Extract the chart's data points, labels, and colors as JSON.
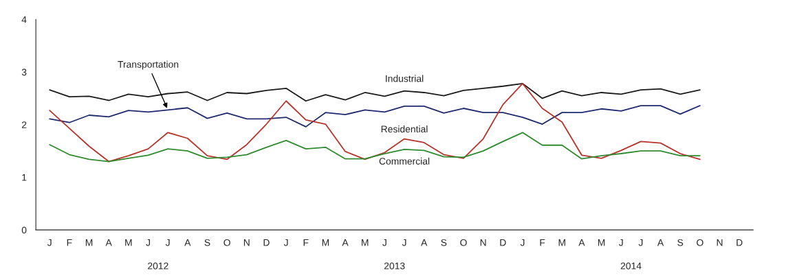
{
  "chart_data": {
    "type": "line",
    "categories": [
      "J",
      "F",
      "M",
      "A",
      "M",
      "J",
      "J",
      "A",
      "S",
      "O",
      "N",
      "D",
      "J",
      "F",
      "M",
      "A",
      "M",
      "J",
      "J",
      "A",
      "S",
      "O",
      "N",
      "D",
      "J",
      "F",
      "M",
      "A",
      "M",
      "J",
      "J",
      "A",
      "S",
      "O",
      "N",
      "D"
    ],
    "series": [
      {
        "name": "Industrial",
        "color": "#1a1a1a",
        "values": [
          2.66,
          2.53,
          2.54,
          2.46,
          2.58,
          2.53,
          2.59,
          2.62,
          2.46,
          2.61,
          2.59,
          2.65,
          2.69,
          2.45,
          2.57,
          2.47,
          2.61,
          2.54,
          2.64,
          2.61,
          2.55,
          2.65,
          2.69,
          2.73,
          2.78,
          2.5,
          2.64,
          2.55,
          2.61,
          2.58,
          2.66,
          2.68,
          2.58,
          2.66,
          null,
          null
        ]
      },
      {
        "name": "Transportation",
        "color": "#1f2a6e",
        "values": [
          2.11,
          2.04,
          2.18,
          2.15,
          2.27,
          2.24,
          2.28,
          2.32,
          2.12,
          2.22,
          2.11,
          2.11,
          2.14,
          1.96,
          2.23,
          2.19,
          2.28,
          2.24,
          2.35,
          2.35,
          2.22,
          2.31,
          2.23,
          2.23,
          2.14,
          2.01,
          2.23,
          2.23,
          2.3,
          2.26,
          2.36,
          2.36,
          2.2,
          2.36,
          null,
          null
        ]
      },
      {
        "name": "Residential",
        "color": "#b8332a",
        "values": [
          2.27,
          1.93,
          1.59,
          1.3,
          1.41,
          1.54,
          1.85,
          1.74,
          1.41,
          1.34,
          1.62,
          2.01,
          2.45,
          2.09,
          2.01,
          1.49,
          1.34,
          1.47,
          1.73,
          1.66,
          1.43,
          1.36,
          1.73,
          2.38,
          2.78,
          2.31,
          2.05,
          1.42,
          1.36,
          1.51,
          1.68,
          1.65,
          1.45,
          1.34,
          null,
          null
        ]
      },
      {
        "name": "Commercial",
        "color": "#2e8b2e",
        "values": [
          1.62,
          1.43,
          1.34,
          1.3,
          1.36,
          1.42,
          1.54,
          1.5,
          1.36,
          1.38,
          1.43,
          1.57,
          1.7,
          1.54,
          1.57,
          1.35,
          1.35,
          1.45,
          1.53,
          1.51,
          1.39,
          1.38,
          1.5,
          1.68,
          1.85,
          1.61,
          1.61,
          1.35,
          1.41,
          1.45,
          1.5,
          1.5,
          1.41,
          1.41,
          null,
          null
        ]
      }
    ],
    "annotations": [
      "2012",
      "2013",
      "2014"
    ],
    "ylim": [
      0,
      4
    ],
    "yticks": [
      0,
      1,
      2,
      3,
      4
    ],
    "grid": false,
    "legend": false,
    "marker": "none",
    "line_style": "solid"
  }
}
